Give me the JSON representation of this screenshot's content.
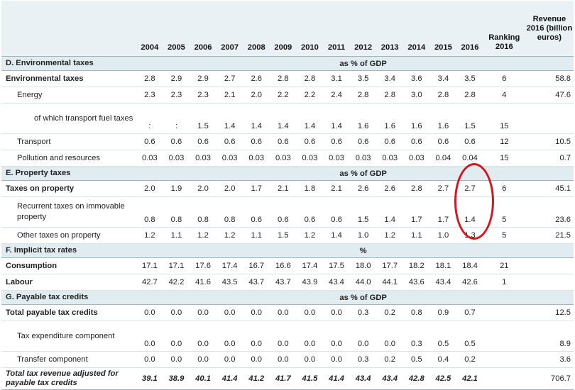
{
  "header": {
    "years": [
      "2004",
      "2005",
      "2006",
      "2007",
      "2008",
      "2009",
      "2010",
      "2011",
      "2012",
      "2013",
      "2014",
      "2015",
      "2016"
    ],
    "ranking_label": "Ranking 2016",
    "revenue_label": "Revenue 2016 (billion euros)"
  },
  "sections": {
    "environmental": {
      "title": "D. Environmental taxes",
      "unit": "as % of GDP"
    },
    "property": {
      "title": "E. Property taxes",
      "unit": "as % of GDP"
    },
    "implicit": {
      "title": "F. Implicit tax rates",
      "unit": "%"
    },
    "credits": {
      "title": "G. Payable tax credits",
      "unit": "as % of GDP"
    }
  },
  "rows": {
    "env_total": {
      "label": "Environmental taxes",
      "values": [
        "2.8",
        "2.9",
        "2.9",
        "2.7",
        "2.6",
        "2.8",
        "2.8",
        "3.1",
        "3.5",
        "3.4",
        "3.6",
        "3.4",
        "3.5"
      ],
      "rank": "6",
      "revenue": "58.8"
    },
    "energy": {
      "label": "Energy",
      "values": [
        "2.3",
        "2.3",
        "2.3",
        "2.1",
        "2.0",
        "2.2",
        "2.2",
        "2.4",
        "2.8",
        "2.8",
        "3.0",
        "2.8",
        "2.8"
      ],
      "rank": "4",
      "revenue": "47.6"
    },
    "transport_fuel": {
      "label": "of which transport fuel taxes",
      "values": [
        ":",
        ":",
        "1.5",
        "1.4",
        "1.4",
        "1.4",
        "1.4",
        "1.4",
        "1.6",
        "1.6",
        "1.6",
        "1.6",
        "1.5"
      ],
      "rank": "15",
      "revenue": ""
    },
    "transport": {
      "label": "Transport",
      "values": [
        "0.6",
        "0.6",
        "0.6",
        "0.6",
        "0.6",
        "0.6",
        "0.6",
        "0.6",
        "0.6",
        "0.6",
        "0.6",
        "0.6",
        "0.6"
      ],
      "rank": "12",
      "revenue": "10.5"
    },
    "pollution": {
      "label": "Pollution and resources",
      "values": [
        "0.03",
        "0.03",
        "0.03",
        "0.03",
        "0.03",
        "0.03",
        "0.03",
        "0.03",
        "0.03",
        "0.03",
        "0.03",
        "0.04",
        "0.04"
      ],
      "rank": "15",
      "revenue": "0.7"
    },
    "property_total": {
      "label": "Taxes on property",
      "values": [
        "2.0",
        "1.9",
        "2.0",
        "2.0",
        "1.7",
        "2.1",
        "1.8",
        "2.1",
        "2.6",
        "2.6",
        "2.8",
        "2.7",
        "2.7"
      ],
      "rank": "6",
      "revenue": "45.1"
    },
    "recurrent": {
      "label": "Recurrent taxes on immovable property",
      "values": [
        "0.8",
        "0.8",
        "0.8",
        "0.8",
        "0.6",
        "0.6",
        "0.6",
        "0.6",
        "1.5",
        "1.4",
        "1.7",
        "1.7",
        "1.4"
      ],
      "rank": "5",
      "revenue": "23.6"
    },
    "other_property": {
      "label": "Other taxes on property",
      "values": [
        "1.2",
        "1.1",
        "1.2",
        "1.2",
        "1.1",
        "1.5",
        "1.2",
        "1.4",
        "1.0",
        "1.2",
        "1.1",
        "1.0",
        "1.3"
      ],
      "rank": "5",
      "revenue": "21.5"
    },
    "consumption": {
      "label": "Consumption",
      "values": [
        "17.1",
        "17.1",
        "17.6",
        "17.4",
        "16.7",
        "16.6",
        "17.4",
        "17.5",
        "18.0",
        "17.7",
        "18.2",
        "18.1",
        "18.4"
      ],
      "rank": "21",
      "revenue": ""
    },
    "labour": {
      "label": "Labour",
      "values": [
        "42.7",
        "42.2",
        "41.6",
        "43.5",
        "43.7",
        "43.7",
        "43.9",
        "43.4",
        "44.0",
        "44.1",
        "43.6",
        "43.4",
        "42.6"
      ],
      "rank": "1",
      "revenue": ""
    },
    "credits_total": {
      "label": "Total payable tax credits",
      "values": [
        "0.0",
        "0.0",
        "0.0",
        "0.0",
        "0.0",
        "0.0",
        "0.0",
        "0.0",
        "0.3",
        "0.2",
        "0.8",
        "0.9",
        "0.7"
      ],
      "rank": "",
      "revenue": "12.5"
    },
    "tax_expenditure": {
      "label": "Tax expenditure component",
      "values": [
        "0.0",
        "0.0",
        "0.0",
        "0.0",
        "0.0",
        "0.0",
        "0.0",
        "0.0",
        "0.0",
        "0.0",
        "0.3",
        "0.5",
        "0.5"
      ],
      "rank": "",
      "revenue": "8.9"
    },
    "transfer": {
      "label": "Transfer component",
      "values": [
        "0.0",
        "0.0",
        "0.0",
        "0.0",
        "0.0",
        "0.0",
        "0.0",
        "0.0",
        "0.3",
        "0.2",
        "0.5",
        "0.4",
        "0.2"
      ],
      "rank": "",
      "revenue": "3.6"
    },
    "total_adjusted": {
      "label": "Total tax revenue adjusted for payable tax credits",
      "values": [
        "39.1",
        "38.9",
        "40.1",
        "41.4",
        "41.2",
        "41.7",
        "41.5",
        "41.4",
        "43.4",
        "43.4",
        "42.8",
        "42.5",
        "42.1"
      ],
      "rank": "",
      "revenue": "706.7"
    }
  },
  "annotation": {
    "color": "#d5161b"
  }
}
